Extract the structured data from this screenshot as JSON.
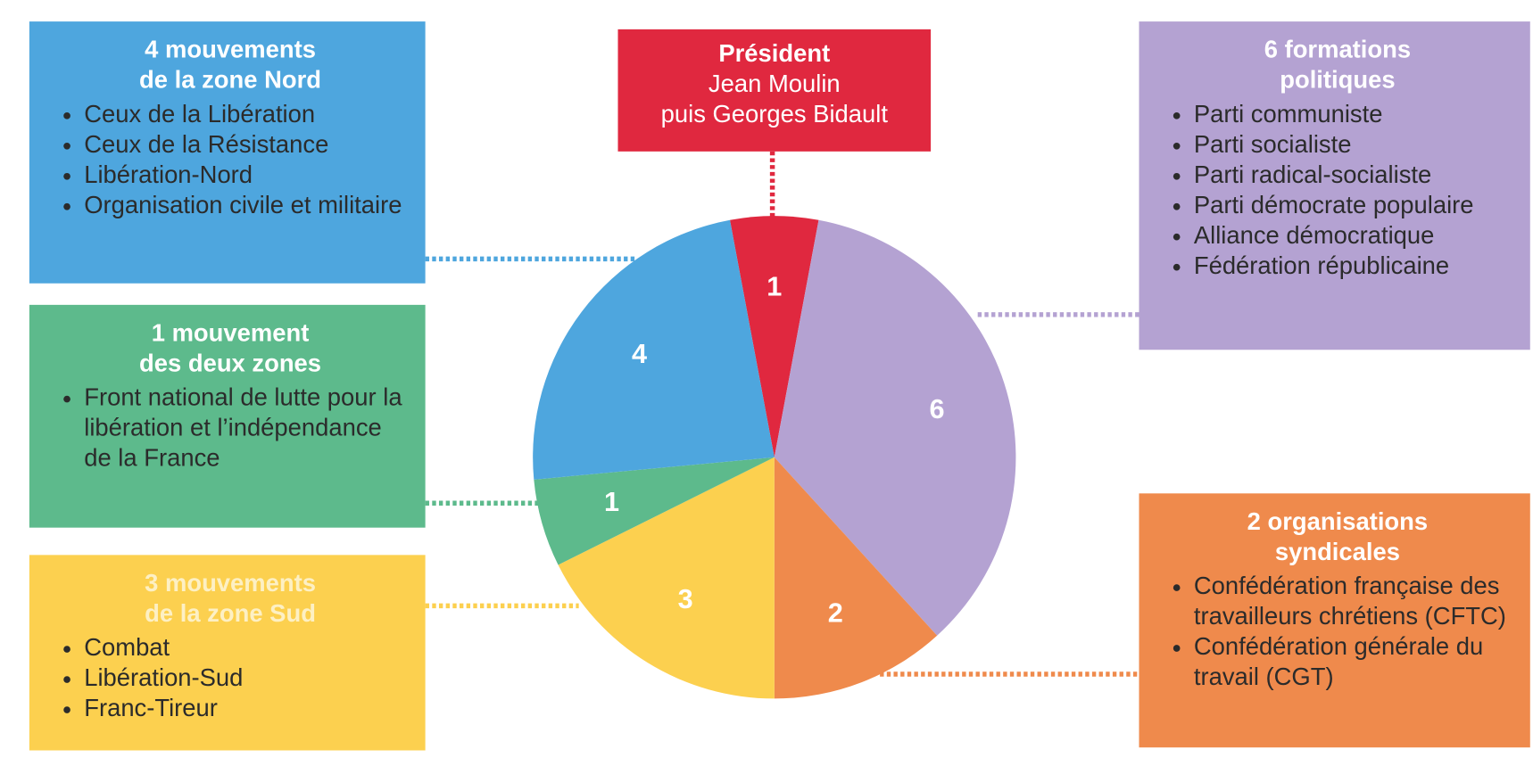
{
  "chart_data": {
    "type": "pie",
    "values": [
      1,
      6,
      2,
      3,
      1,
      4
    ],
    "colors": [
      "#e0283f",
      "#b4a2d2",
      "#ef8a4c",
      "#fcd04f",
      "#5dba8c",
      "#4ea6de"
    ],
    "annotations": [
      {
        "title": [
          "Président"
        ],
        "lines": [
          "Jean Moulin",
          "puis Georges Bidault"
        ]
      },
      {
        "title": [
          "6 formations",
          "politiques"
        ],
        "items": [
          "Parti communiste",
          "Parti socialiste",
          "Parti radical-socialiste",
          "Parti démocrate populaire",
          "Alliance démocratique",
          "Fédération républicaine"
        ]
      },
      {
        "title": [
          "2 organisations",
          "syndicales"
        ],
        "items": [
          "Confédération française des travailleurs chrétiens (CFTC)",
          "Confédération générale du travail (CGT)"
        ]
      },
      {
        "title": [
          "3 mouvements",
          "de la zone Sud"
        ],
        "items": [
          "Combat",
          "Libération-Sud",
          "Franc-Tireur"
        ]
      },
      {
        "title": [
          "1 mouvement",
          "des deux zones"
        ],
        "items": [
          "Front national de lutte pour la libération et l’indépendance de la France"
        ]
      },
      {
        "title": [
          "4 mouvements",
          "de la zone Nord"
        ],
        "items": [
          "Ceux de la Libération",
          "Ceux de la Résistance",
          "Libération-Nord",
          "Organisation civile et militaire"
        ]
      }
    ]
  }
}
